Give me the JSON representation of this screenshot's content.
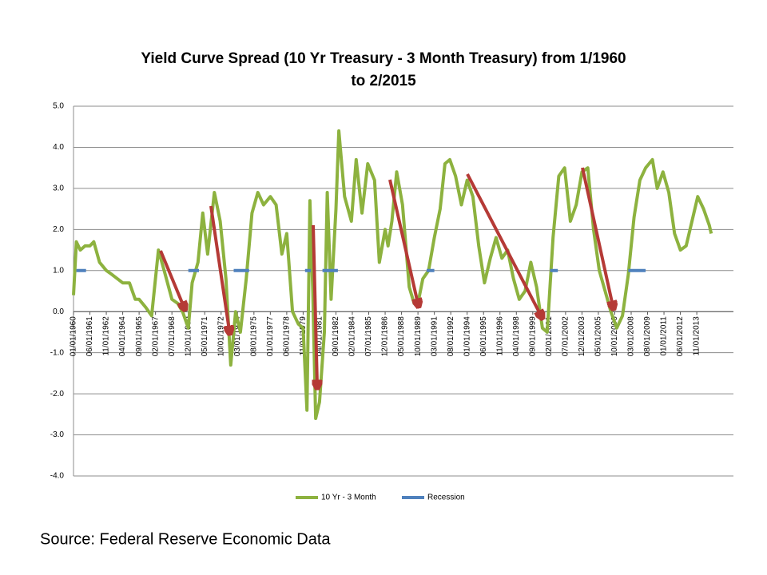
{
  "chart_data": {
    "type": "line",
    "title": [
      "Yield Curve Spread (10 Yr Treasury - 3 Month Treasury) from 1/1960",
      "to 2/2015"
    ],
    "source": "Source: Federal Reserve Economic Data",
    "xlim": [
      "01/01/1960",
      "01/01/2017"
    ],
    "xticks": [
      "01/01/1960",
      "06/01/1961",
      "11/01/1962",
      "04/01/1964",
      "09/01/1965",
      "02/01/1967",
      "07/01/1968",
      "12/01/1969",
      "05/01/1971",
      "10/01/1972",
      "03/01/1974",
      "08/01/1975",
      "01/01/1977",
      "06/01/1978",
      "11/01/1979",
      "04/01/1981",
      "09/01/1982",
      "02/01/1984",
      "07/01/1985",
      "12/01/1986",
      "05/01/1988",
      "10/01/1989",
      "03/01/1991",
      "08/01/1992",
      "01/01/1994",
      "06/01/1995",
      "11/01/1996",
      "04/01/1998",
      "09/01/1999",
      "02/01/2001",
      "07/01/2002",
      "12/01/2003",
      "05/01/2005",
      "10/01/2006",
      "03/01/2008",
      "08/01/2009",
      "01/01/2011",
      "06/01/2012",
      "11/01/2013"
    ],
    "ylim": [
      -4,
      5
    ],
    "yticks": [
      {
        "value": 5,
        "label": "5.0"
      },
      {
        "value": 4,
        "label": "4.0"
      },
      {
        "value": 3,
        "label": "3.0"
      },
      {
        "value": 2,
        "label": "2.0"
      },
      {
        "value": 1,
        "label": "1.0"
      },
      {
        "value": 0,
        "label": "0.0"
      },
      {
        "value": -1,
        "label": "-1.0"
      },
      {
        "value": -2,
        "label": "-2.0"
      },
      {
        "value": -3,
        "label": "-3.0"
      },
      {
        "value": -4,
        "label": "-4.0"
      }
    ],
    "grid": true,
    "legend": "bottom",
    "series": [
      {
        "name": "10 Yr - 3 Month",
        "color": "#8db23f",
        "x": [
          "01/01/1960",
          "04/01/1960",
          "08/01/1960",
          "01/01/1961",
          "06/01/1961",
          "10/01/1961",
          "04/01/1962",
          "11/01/1962",
          "05/01/1963",
          "04/01/1964",
          "11/01/1964",
          "05/01/1965",
          "09/01/1965",
          "04/01/1966",
          "10/01/1966",
          "05/01/1967",
          "11/01/1967",
          "07/01/1968",
          "01/01/1969",
          "06/01/1969",
          "12/01/1969",
          "04/01/1970",
          "10/01/1970",
          "03/01/1971",
          "08/01/1971",
          "03/01/1972",
          "09/01/1972",
          "03/01/1973",
          "08/01/1973",
          "01/01/1974",
          "06/01/1974",
          "12/01/1974",
          "06/01/1975",
          "12/01/1975",
          "06/01/1976",
          "01/01/1977",
          "07/01/1977",
          "01/01/1978",
          "06/01/1978",
          "12/01/1978",
          "06/01/1979",
          "11/01/1979",
          "03/01/1980",
          "06/01/1980",
          "09/01/1980",
          "12/01/1980",
          "04/01/1981",
          "09/01/1981",
          "12/01/1981",
          "04/01/1982",
          "09/01/1982",
          "12/01/1982",
          "06/01/1983",
          "01/01/1984",
          "06/01/1984",
          "12/01/1984",
          "06/01/1985",
          "01/01/1986",
          "06/01/1986",
          "12/01/1986",
          "03/01/1987",
          "07/01/1987",
          "12/01/1987",
          "06/01/1988",
          "01/01/1989",
          "06/01/1989",
          "10/01/1989",
          "03/01/1990",
          "09/01/1990",
          "03/01/1991",
          "09/01/1991",
          "02/01/1992",
          "07/01/1992",
          "01/01/1993",
          "07/01/1993",
          "01/01/1994",
          "07/01/1994",
          "01/01/1995",
          "07/01/1995",
          "01/01/1996",
          "07/01/1996",
          "01/01/1997",
          "07/01/1997",
          "01/01/1998",
          "07/01/1998",
          "01/01/1999",
          "07/01/1999",
          "01/01/2000",
          "07/01/2000",
          "12/01/2000",
          "06/01/2001",
          "12/01/2001",
          "06/01/2002",
          "12/01/2002",
          "06/01/2003",
          "12/01/2003",
          "06/01/2004",
          "12/01/2004",
          "06/01/2005",
          "12/01/2005",
          "06/01/2006",
          "12/01/2006",
          "06/01/2007",
          "12/01/2007",
          "06/01/2008",
          "12/01/2008",
          "06/01/2009",
          "01/01/2010",
          "06/01/2010",
          "12/01/2010",
          "06/01/2011",
          "12/01/2011",
          "06/01/2012",
          "12/01/2012",
          "06/01/2013",
          "12/01/2013",
          "06/01/2014",
          "12/01/2014",
          "02/01/2015"
        ],
        "values": [
          0.4,
          1.7,
          1.5,
          1.6,
          1.6,
          1.7,
          1.2,
          1.0,
          0.9,
          0.7,
          0.7,
          0.3,
          0.3,
          0.1,
          -0.1,
          1.5,
          1.0,
          0.3,
          0.2,
          0.0,
          -0.4,
          0.7,
          1.2,
          2.4,
          1.4,
          2.9,
          2.2,
          0.8,
          -1.3,
          0.0,
          -0.5,
          0.8,
          2.4,
          2.9,
          2.6,
          2.8,
          2.6,
          1.4,
          1.9,
          0.0,
          -0.3,
          -0.4,
          -2.4,
          2.7,
          0.5,
          -2.6,
          -2.2,
          -0.5,
          2.9,
          0.3,
          2.5,
          4.4,
          2.8,
          2.2,
          3.7,
          2.4,
          3.6,
          3.2,
          1.2,
          2.0,
          1.6,
          2.2,
          3.4,
          2.6,
          0.6,
          0.2,
          0.2,
          0.8,
          1.0,
          1.8,
          2.5,
          3.6,
          3.7,
          3.3,
          2.6,
          3.2,
          2.8,
          1.6,
          0.7,
          1.3,
          1.8,
          1.3,
          1.5,
          0.8,
          0.3,
          0.5,
          1.2,
          0.6,
          -0.4,
          -0.5,
          1.8,
          3.3,
          3.5,
          2.2,
          2.6,
          3.4,
          3.5,
          2.0,
          1.0,
          0.5,
          0.0,
          -0.4,
          -0.1,
          0.9,
          2.3,
          3.2,
          3.5,
          3.7,
          3.0,
          3.4,
          2.9,
          1.9,
          1.5,
          1.6,
          2.2,
          2.8,
          2.5,
          2.1,
          1.9
        ]
      },
      {
        "name": "Recession",
        "color": "#4f81bd",
        "x": [
          "04/01/1960",
          "02/01/1961",
          null,
          "12/01/1969",
          "11/01/1970",
          null,
          "11/01/1973",
          "03/01/1975",
          null,
          "01/01/1980",
          "07/01/1980",
          null,
          "07/01/1981",
          "11/01/1982",
          null,
          "07/01/1990",
          "03/01/1991",
          null,
          "03/01/2001",
          "11/01/2001",
          null,
          "12/01/2007",
          "06/01/2009"
        ],
        "values": [
          1,
          1,
          null,
          1,
          1,
          null,
          1,
          1,
          null,
          1,
          1,
          null,
          1,
          1,
          null,
          1,
          1,
          null,
          1,
          1,
          null,
          1,
          1
        ]
      }
    ]
  }
}
